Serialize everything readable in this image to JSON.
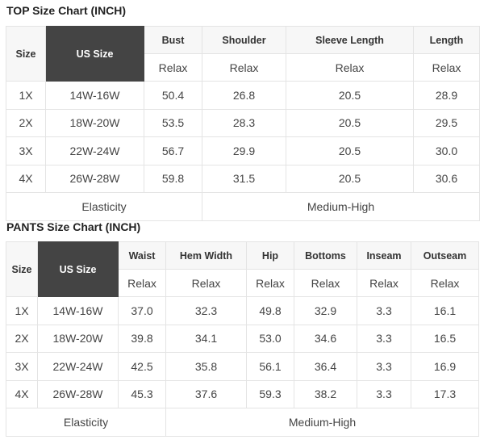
{
  "top": {
    "title": "TOP Size Chart (INCH)",
    "headers": [
      "Size",
      "US Size",
      "Bust",
      "Shoulder",
      "Sleeve Length",
      "Length"
    ],
    "fit": [
      "Relax",
      "Relax",
      "Relax",
      "Relax"
    ],
    "rows": [
      [
        "1X",
        "14W-16W",
        "50.4",
        "26.8",
        "20.5",
        "28.9"
      ],
      [
        "2X",
        "18W-20W",
        "53.5",
        "28.3",
        "20.5",
        "29.5"
      ],
      [
        "3X",
        "22W-24W",
        "56.7",
        "29.9",
        "20.5",
        "30.0"
      ],
      [
        "4X",
        "26W-28W",
        "59.8",
        "31.5",
        "20.5",
        "30.6"
      ]
    ],
    "elasticity_label": "Elasticity",
    "elasticity_value": "Medium-High"
  },
  "pants": {
    "title": "PANTS Size Chart (INCH)",
    "headers": [
      "Size",
      "US Size",
      "Waist",
      "Hem Width",
      "Hip",
      "Bottoms",
      "Inseam",
      "Outseam"
    ],
    "fit": [
      "Relax",
      "Relax",
      "Relax",
      "Relax",
      "Relax",
      "Relax"
    ],
    "rows": [
      [
        "1X",
        "14W-16W",
        "37.0",
        "32.3",
        "49.8",
        "32.9",
        "3.3",
        "16.1"
      ],
      [
        "2X",
        "18W-20W",
        "39.8",
        "34.1",
        "53.0",
        "34.6",
        "3.3",
        "16.5"
      ],
      [
        "3X",
        "22W-24W",
        "42.5",
        "35.8",
        "56.1",
        "36.4",
        "3.3",
        "16.9"
      ],
      [
        "4X",
        "26W-28W",
        "45.3",
        "37.6",
        "59.3",
        "38.2",
        "3.3",
        "17.3"
      ]
    ],
    "elasticity_label": "Elasticity",
    "elasticity_value": "Medium-High"
  }
}
